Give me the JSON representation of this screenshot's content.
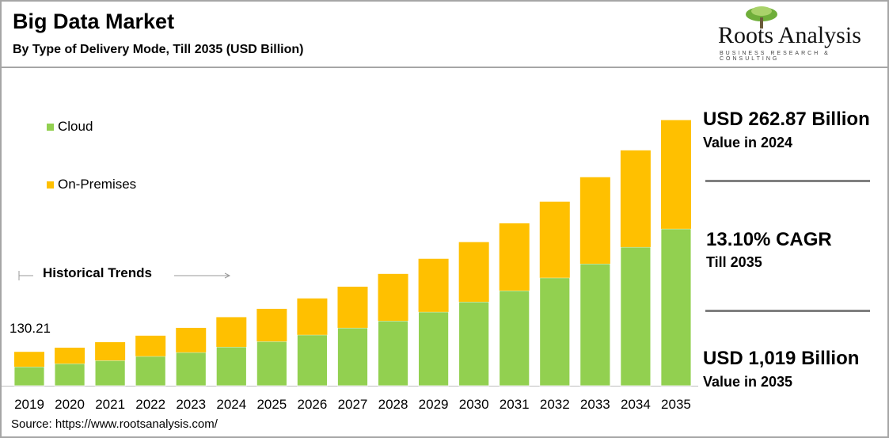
{
  "header": {
    "title": "Big Data Market",
    "subtitle": "By Type of Delivery Mode, Till 2035 (USD Billion)"
  },
  "logo": {
    "name": "Roots Analysis",
    "tagline": "BUSINESS RESEARCH & CONSULTING"
  },
  "annotation": {
    "historical": "Historical Trends",
    "first_value": "130.21"
  },
  "kpis": [
    {
      "value": "USD 262.87 Billion",
      "label": "Value in 2024"
    },
    {
      "value": "13.10% CAGR",
      "label": "Till 2035"
    },
    {
      "value": "USD 1,019 Billion",
      "label": "Value in 2035"
    }
  ],
  "source": "Source: https://www.rootsanalysis.com/",
  "chart_data": {
    "type": "bar",
    "stacked": true,
    "title": "Big Data Market",
    "categories": [
      "2019",
      "2020",
      "2021",
      "2022",
      "2023",
      "2024",
      "2025",
      "2026",
      "2027",
      "2028",
      "2029",
      "2030",
      "2031",
      "2032",
      "2033",
      "2034",
      "2035"
    ],
    "series": [
      {
        "name": "Cloud",
        "color": "#92d050",
        "values": [
          73,
          85,
          97,
          113,
          128,
          149,
          170,
          195,
          222,
          249,
          283,
          322,
          365,
          414,
          468,
          532,
          602
        ]
      },
      {
        "name": "On-Premises",
        "color": "#ffc000",
        "values": [
          57,
          61,
          70,
          79,
          94,
          114,
          125,
          140,
          158,
          180,
          204,
          229,
          258,
          292,
          332,
          371,
          417
        ]
      }
    ],
    "legend_position": "top-left",
    "grid": false,
    "ylim": [
      0,
      1100
    ]
  }
}
